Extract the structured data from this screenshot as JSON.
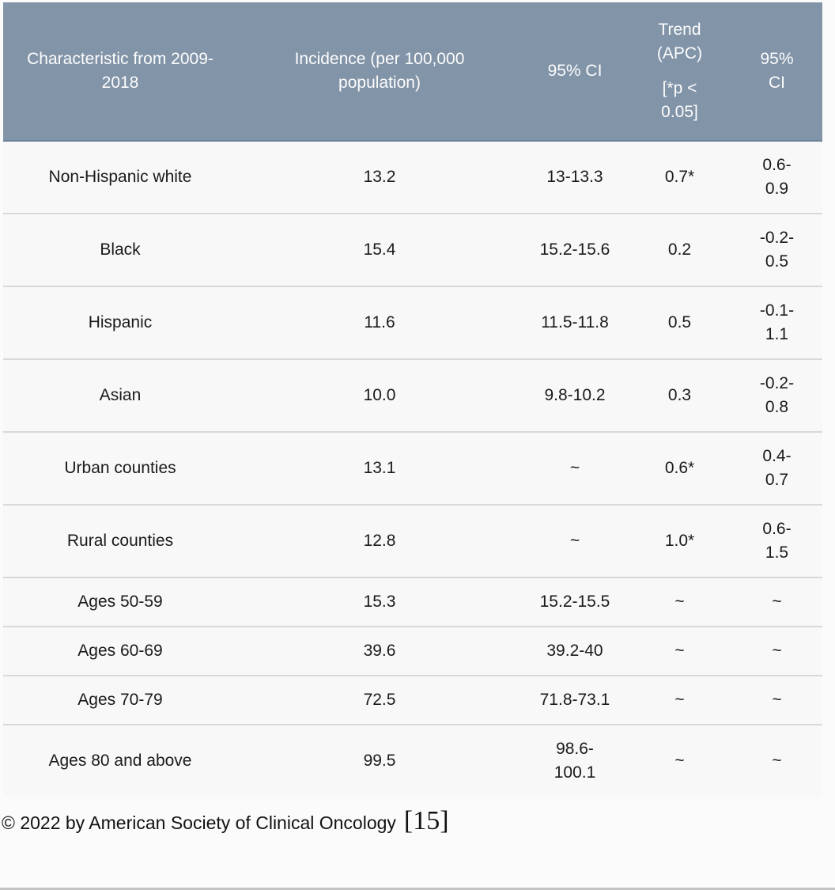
{
  "chart_data": {
    "type": "table",
    "columns": [
      "Characteristic from 2009-2018",
      "Incidence (per 100,000 population)",
      "95% CI",
      "Trend (APC) [*p < 0.05]",
      "95% CI"
    ],
    "header": {
      "col1": "Characteristic from 2009-2018",
      "col2": "Incidence (per 100,000 population)",
      "col3": "95% CI",
      "col4_line1": "Trend (APC)",
      "col4_line2": "[*p < 0.05]",
      "col5": "95% CI"
    },
    "rows": [
      {
        "c1": "Non-Hispanic white",
        "c2": "13.2",
        "c3": "13-13.3",
        "c4": "0.7*",
        "c5": "0.6-0.9"
      },
      {
        "c1": "Black",
        "c2": "15.4",
        "c3": "15.2-15.6",
        "c4": "0.2",
        "c5": "-0.2-0.5"
      },
      {
        "c1": "Hispanic",
        "c2": "11.6",
        "c3": "11.5-11.8",
        "c4": "0.5",
        "c5": "-0.1-1.1"
      },
      {
        "c1": "Asian",
        "c2": "10.0",
        "c3": "9.8-10.2",
        "c4": "0.3",
        "c5": "-0.2-0.8"
      },
      {
        "c1": "Urban counties",
        "c2": "13.1",
        "c3": "~",
        "c4": "0.6*",
        "c5": "0.4-0.7"
      },
      {
        "c1": "Rural counties",
        "c2": "12.8",
        "c3": "~",
        "c4": "1.0*",
        "c5": "0.6-1.5"
      },
      {
        "c1": "Ages 50-59",
        "c2": "15.3",
        "c3": "15.2-15.5",
        "c4": "~",
        "c5": "~"
      },
      {
        "c1": "Ages 60-69",
        "c2": "39.6",
        "c3": "39.2-40",
        "c4": "~",
        "c5": "~"
      },
      {
        "c1": "Ages 70-79",
        "c2": "72.5",
        "c3": "71.8-73.1",
        "c4": "~",
        "c5": "~"
      },
      {
        "c1": "Ages 80 and above",
        "c2": "99.5",
        "c3": "98.6-100.1",
        "c4": "~",
        "c5": "~"
      }
    ]
  },
  "footer": {
    "copyright": "© 2022 by American Society of Clinical Oncology",
    "citation": "[15]"
  },
  "colors": {
    "header_bg": "#8294a8",
    "header_text": "#fdfdfd",
    "row_bg": "#f8f8f8",
    "separator": "#d9d9d9",
    "body_text": "#1a1a1a",
    "bottom_rule": "#c4c4c4"
  }
}
